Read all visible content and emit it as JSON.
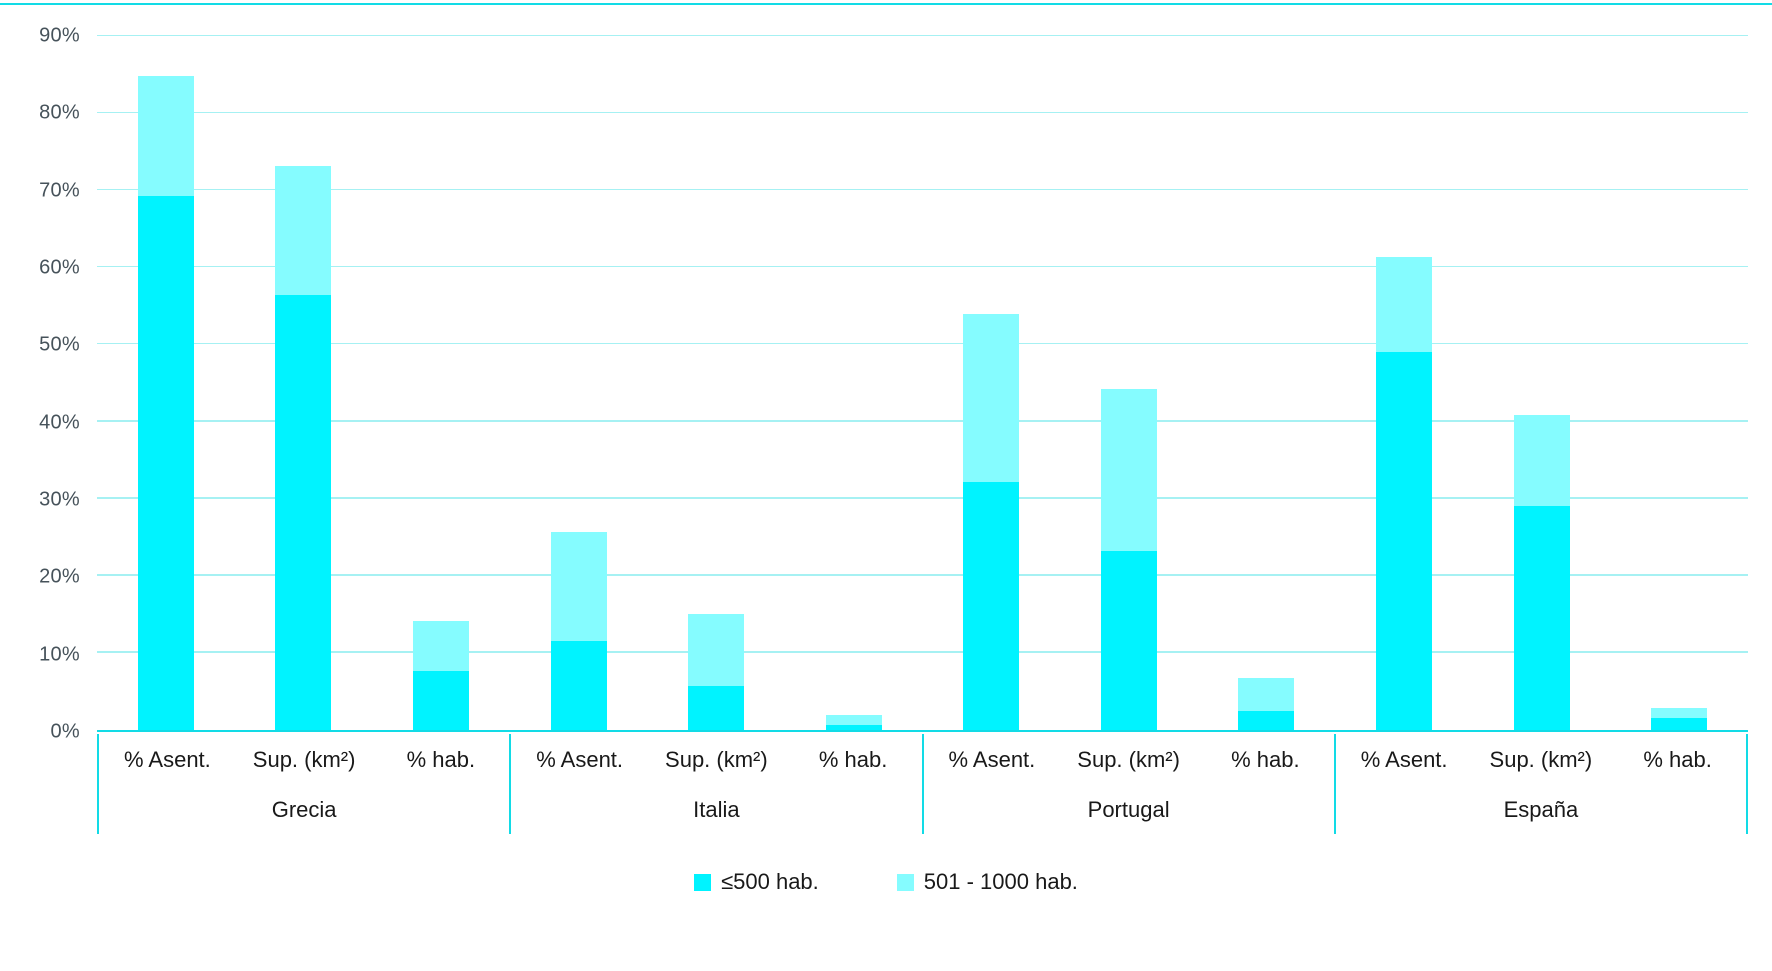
{
  "colors": {
    "series_le500": "#00f3ff",
    "series_501_1000": "#85fcff",
    "gridline": "#a6f1f3",
    "axis_line": "#12dbe6",
    "tick_text": "#46525a",
    "label_text": "#191919",
    "background": "#ffffff"
  },
  "chart_data": {
    "type": "bar",
    "stacked": true,
    "groups": [
      "Grecia",
      "Italia",
      "Portugal",
      "España"
    ],
    "categories": [
      "% Asent.",
      "Sup. (km²)",
      "% hab."
    ],
    "series": [
      {
        "name": "≤500 hab.",
        "color": "#00f3ff",
        "values": [
          [
            69.3,
            56.4,
            7.7
          ],
          [
            11.5,
            5.7,
            0.6
          ],
          [
            32.1,
            23.2,
            2.5
          ],
          [
            49.0,
            29.0,
            1.5
          ]
        ]
      },
      {
        "name": "501 - 1000 hab.",
        "color": "#85fcff",
        "values": [
          [
            15.5,
            16.8,
            6.5
          ],
          [
            14.2,
            9.4,
            1.3
          ],
          [
            21.8,
            21.0,
            4.3
          ],
          [
            12.4,
            11.9,
            1.4
          ]
        ]
      }
    ],
    "stack_totals": [
      [
        84.8,
        73.2,
        14.2
      ],
      [
        25.7,
        15.1,
        1.9
      ],
      [
        53.9,
        44.2,
        6.8
      ],
      [
        61.4,
        40.9,
        2.9
      ]
    ],
    "ylim": [
      0,
      90
    ],
    "ytick_step": 10,
    "ytick_labels": [
      "0%",
      "10%",
      "20%",
      "30%",
      "40%",
      "50%",
      "60%",
      "70%",
      "80%",
      "90%"
    ],
    "grid": true,
    "legend_position": "bottom"
  }
}
